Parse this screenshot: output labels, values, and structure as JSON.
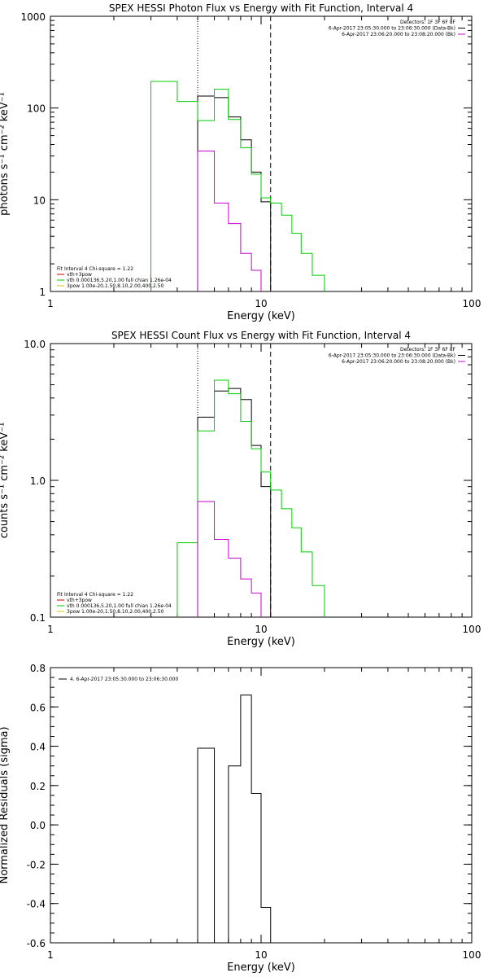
{
  "chart_data": [
    {
      "type": "line",
      "title": "SPEX HESSI Photon Flux vs Energy with Fit Function, Interval 4",
      "xlabel": "Energy (keV)",
      "ylabel": "photons s⁻¹ cm⁻² keV⁻¹",
      "x_scale": "log",
      "y_scale": "log",
      "xlim": [
        1,
        100
      ],
      "ylim": [
        1,
        1000
      ],
      "x_ticks": [
        "1",
        "10",
        "100"
      ],
      "y_ticks": [
        "1",
        "10",
        "100",
        "1000"
      ],
      "vlines": [
        {
          "x": 5.0,
          "style": "dotted"
        },
        {
          "x": 11.1,
          "style": "dashed"
        }
      ],
      "legend_top_right": [
        {
          "text": "Detectors: 1F 3F 6F 8F",
          "color": "#000000"
        },
        {
          "text": "6-Apr-2017 23:05:30.000 to 23:06:30.000 (Data-Bk)",
          "color": "#000000"
        },
        {
          "text": "6-Apr-2017 23:06:20.000 to 23:08:20.000 (Bk)",
          "color": "#cc00cc"
        }
      ],
      "legend_bottom_left": [
        {
          "text": "Fit Interval 4   Chi-square = 1.22",
          "color": "#000000"
        },
        {
          "text": "vth+3pow",
          "color": "#cc0000"
        },
        {
          "text": "vth 0.000136,5.20,1.00   full chian 1.26e-04",
          "color": "#00cc00"
        },
        {
          "text": "3pow 1.00e-20,1.50,8.10,2.00,400,2.50",
          "color": "#cccc00"
        }
      ],
      "series": [
        {
          "color": "#000000",
          "edges": [
            5.0,
            6.0,
            7.0,
            8.0,
            9.0,
            10.0,
            11.1
          ],
          "values": [
            135,
            130,
            80,
            45,
            20,
            9.5
          ]
        },
        {
          "color": "#00cc00",
          "edges": [
            3.0,
            4.0,
            5.0,
            6.0,
            7.0,
            8.0,
            9.0,
            10.0,
            11.1,
            12.5,
            14.0,
            15.5,
            17.5,
            20.0
          ],
          "values": [
            195,
            118,
            73,
            160,
            75,
            37,
            19,
            10.5,
            9.2,
            6.8,
            4.3,
            2.6,
            1.5
          ]
        },
        {
          "color": "#cc00cc",
          "edges": [
            5.0,
            6.0,
            7.0,
            8.0,
            9.0,
            10.0
          ],
          "values": [
            34,
            9.2,
            5.5,
            2.6,
            1.7
          ]
        }
      ]
    },
    {
      "type": "line",
      "title": "SPEX HESSI Count Flux vs Energy with Fit Function, Interval 4",
      "xlabel": "Energy (keV)",
      "ylabel": "counts s⁻¹ cm⁻² keV⁻¹",
      "x_scale": "log",
      "y_scale": "log",
      "xlim": [
        1,
        100
      ],
      "ylim": [
        0.1,
        10
      ],
      "x_ticks": [
        "1",
        "10",
        "100"
      ],
      "y_ticks": [
        "0.1",
        "1.0",
        "10.0"
      ],
      "vlines": [
        {
          "x": 5.0,
          "style": "dotted"
        },
        {
          "x": 11.1,
          "style": "dashed"
        }
      ],
      "legend_top_right": [
        {
          "text": "Detectors: 1F 3F 6F 8F",
          "color": "#000000"
        },
        {
          "text": "6-Apr-2017 23:05:30.000 to 23:06:30.000 (Data-Bk)",
          "color": "#000000"
        },
        {
          "text": "6-Apr-2017 23:06:20.000 to 23:08:20.000 (Bk)",
          "color": "#cc00cc"
        }
      ],
      "legend_bottom_left": [
        {
          "text": "Fit Interval 4   Chi-square = 1.22",
          "color": "#000000"
        },
        {
          "text": "vth+3pow",
          "color": "#cc0000"
        },
        {
          "text": "vth 0.000136,5.20,1.00   full chian 1.26e-04",
          "color": "#00cc00"
        },
        {
          "text": "3pow 1.00e-20,1.50,8.10,2.00,400,2.50",
          "color": "#cccc00"
        }
      ],
      "series": [
        {
          "color": "#000000",
          "edges": [
            5.0,
            6.0,
            7.0,
            8.0,
            9.0,
            10.0,
            11.1
          ],
          "values": [
            2.9,
            4.5,
            4.7,
            3.9,
            1.8,
            0.9
          ]
        },
        {
          "color": "#00cc00",
          "edges": [
            4.0,
            5.0,
            6.0,
            7.0,
            8.0,
            9.0,
            10.0,
            11.1,
            12.5,
            14.0,
            15.5,
            17.5,
            20.0
          ],
          "values": [
            0.35,
            2.3,
            5.4,
            4.3,
            2.7,
            1.7,
            1.15,
            0.85,
            0.62,
            0.45,
            0.3,
            0.17
          ]
        },
        {
          "color": "#cc00cc",
          "edges": [
            5.0,
            6.0,
            7.0,
            8.0,
            9.0,
            10.0
          ],
          "values": [
            0.7,
            0.37,
            0.27,
            0.19,
            0.15
          ]
        }
      ]
    },
    {
      "type": "line",
      "title": "",
      "xlabel": "Energy (keV)",
      "ylabel": "Normalized Residuals (sigma)",
      "x_scale": "log",
      "y_scale": "linear",
      "xlim": [
        1,
        100
      ],
      "ylim": [
        -0.6,
        0.8
      ],
      "x_ticks": [
        "1",
        "10",
        "100"
      ],
      "y_ticks": [
        "-0.6",
        "-0.4",
        "-0.2",
        "0.0",
        "0.2",
        "0.4",
        "0.6",
        "0.8"
      ],
      "legend_top_left": [
        {
          "text": "4.  6-Apr-2017 23:05:30.000 to 23:06:30.000",
          "color": "#000000"
        }
      ],
      "series": [
        {
          "color": "#000000",
          "edges": [
            5.0,
            6.0,
            7.0,
            8.0,
            9.0,
            10.0,
            11.1
          ],
          "values": [
            0.39,
            -0.61,
            0.3,
            0.66,
            0.16,
            -0.42
          ]
        }
      ]
    }
  ]
}
